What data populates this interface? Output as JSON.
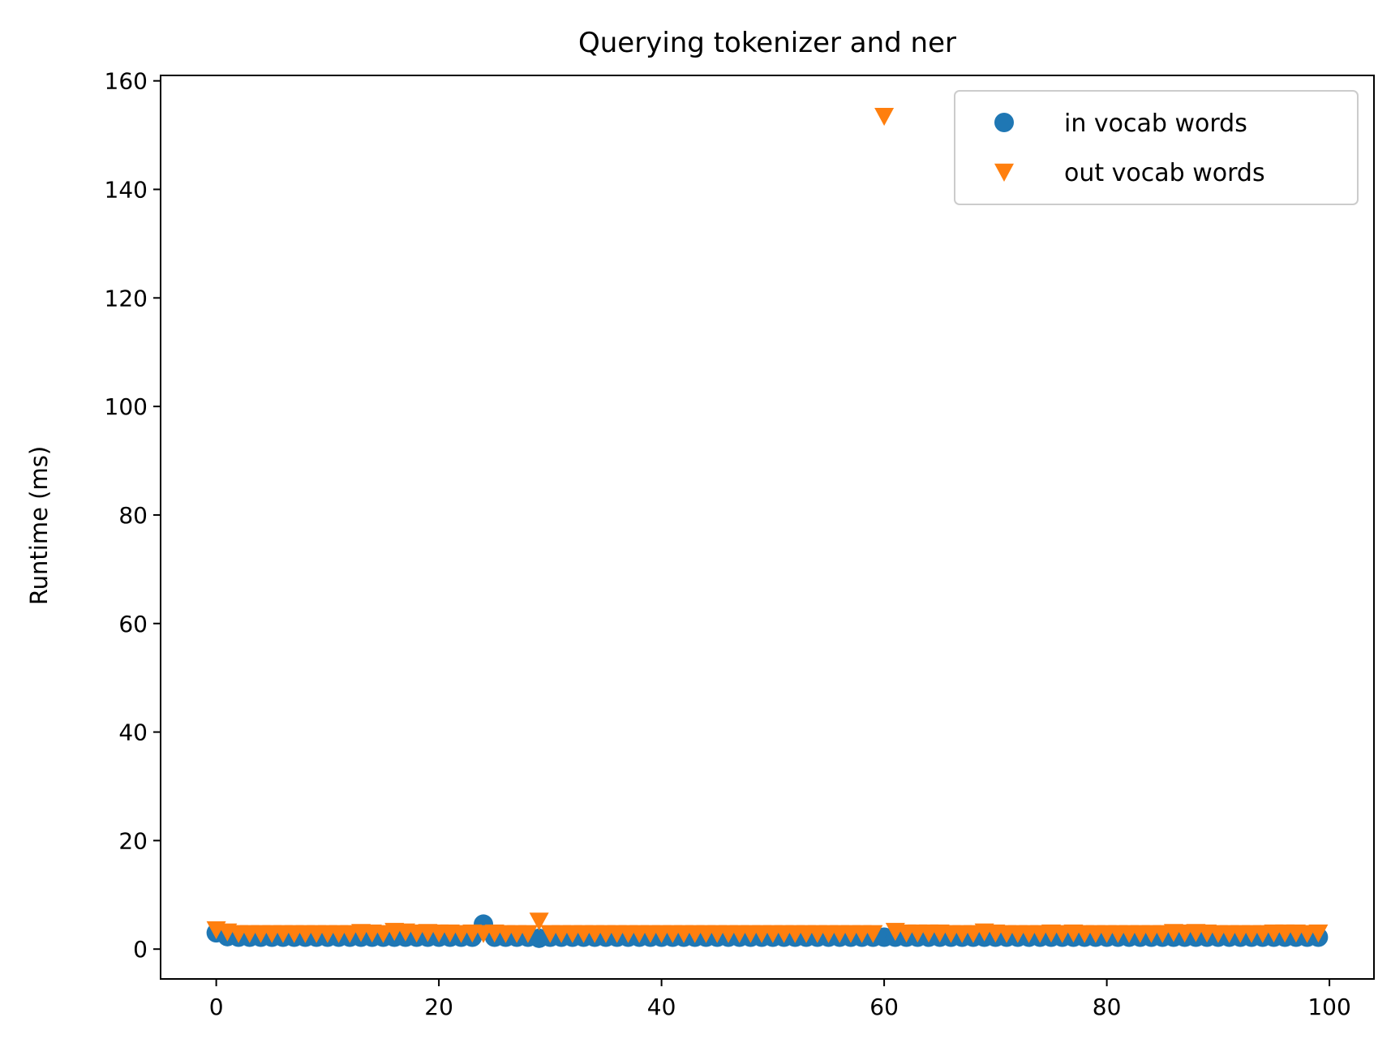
{
  "chart_data": {
    "type": "scatter",
    "title": "Querying tokenizer and ner",
    "xlabel": "",
    "ylabel": "Runtime (ms)",
    "xlim": [
      -5,
      104
    ],
    "ylim": [
      -5.5,
      161
    ],
    "xticks": [
      0,
      20,
      40,
      60,
      80,
      100
    ],
    "yticks": [
      0,
      20,
      40,
      60,
      80,
      100,
      120,
      140,
      160
    ],
    "grid": false,
    "legend_position": "top-right",
    "series": [
      {
        "name": "in vocab words",
        "marker": "circle",
        "color": "#1f77b4",
        "x": [
          0,
          1,
          2,
          3,
          4,
          5,
          6,
          7,
          8,
          9,
          10,
          11,
          12,
          13,
          14,
          15,
          16,
          17,
          18,
          19,
          20,
          21,
          22,
          23,
          24,
          25,
          26,
          27,
          28,
          29,
          30,
          31,
          32,
          33,
          34,
          35,
          36,
          37,
          38,
          39,
          40,
          41,
          42,
          43,
          44,
          45,
          46,
          47,
          48,
          49,
          50,
          51,
          52,
          53,
          54,
          55,
          56,
          57,
          58,
          59,
          60,
          61,
          62,
          63,
          64,
          65,
          66,
          67,
          68,
          69,
          70,
          71,
          72,
          73,
          74,
          75,
          76,
          77,
          78,
          79,
          80,
          81,
          82,
          83,
          84,
          85,
          86,
          87,
          88,
          89,
          90,
          91,
          92,
          93,
          94,
          95,
          96,
          97,
          98,
          99
        ],
        "y": [
          3.0,
          2.3,
          2.2,
          2.2,
          2.2,
          2.2,
          2.2,
          2.2,
          2.2,
          2.2,
          2.2,
          2.2,
          2.2,
          2.2,
          2.2,
          2.2,
          2.2,
          2.2,
          2.2,
          2.2,
          2.2,
          2.2,
          2.2,
          2.2,
          4.6,
          2.2,
          2.2,
          2.2,
          2.2,
          2.0,
          2.2,
          2.2,
          2.2,
          2.2,
          2.2,
          2.2,
          2.2,
          2.2,
          2.2,
          2.2,
          2.2,
          2.2,
          2.2,
          2.2,
          2.2,
          2.2,
          2.2,
          2.2,
          2.2,
          2.2,
          2.2,
          2.2,
          2.2,
          2.2,
          2.2,
          2.2,
          2.2,
          2.2,
          2.2,
          2.2,
          2.2,
          2.2,
          2.2,
          2.2,
          2.2,
          2.2,
          2.2,
          2.2,
          2.2,
          2.2,
          2.2,
          2.2,
          2.2,
          2.2,
          2.2,
          2.2,
          2.2,
          2.2,
          2.2,
          2.2,
          2.2,
          2.2,
          2.2,
          2.2,
          2.2,
          2.2,
          2.2,
          2.2,
          2.2,
          2.2,
          2.2,
          2.2,
          2.2,
          2.2,
          2.2,
          2.2,
          2.2,
          2.2,
          2.2,
          2.2
        ]
      },
      {
        "name": "out vocab words",
        "marker": "triangle-down",
        "color": "#ff7f0e",
        "x": [
          0,
          1,
          2,
          3,
          4,
          5,
          6,
          7,
          8,
          9,
          10,
          11,
          12,
          13,
          14,
          15,
          16,
          17,
          18,
          19,
          20,
          21,
          22,
          23,
          24,
          25,
          26,
          27,
          28,
          29,
          30,
          31,
          32,
          33,
          34,
          35,
          36,
          37,
          38,
          39,
          40,
          41,
          42,
          43,
          44,
          45,
          46,
          47,
          48,
          49,
          50,
          51,
          52,
          53,
          54,
          55,
          56,
          57,
          58,
          59,
          60,
          61,
          62,
          63,
          64,
          65,
          66,
          67,
          68,
          69,
          70,
          71,
          72,
          73,
          74,
          75,
          76,
          77,
          78,
          79,
          80,
          81,
          82,
          83,
          84,
          85,
          86,
          87,
          88,
          89,
          90,
          91,
          92,
          93,
          94,
          95,
          96,
          97,
          98,
          99
        ],
        "y": [
          3.6,
          3.2,
          2.9,
          2.9,
          2.9,
          2.9,
          2.9,
          2.9,
          2.9,
          2.9,
          2.9,
          2.9,
          2.9,
          3.1,
          3.0,
          2.9,
          3.3,
          3.2,
          3.0,
          3.1,
          3.0,
          3.0,
          2.9,
          3.0,
          2.9,
          3.0,
          2.9,
          2.9,
          2.9,
          5.2,
          2.9,
          2.9,
          2.9,
          2.9,
          2.9,
          2.9,
          2.9,
          2.9,
          2.9,
          2.9,
          2.9,
          2.9,
          2.9,
          2.9,
          2.9,
          2.9,
          2.9,
          2.9,
          2.9,
          2.9,
          2.9,
          2.9,
          2.9,
          2.9,
          2.9,
          2.9,
          2.9,
          2.9,
          2.9,
          2.9,
          153.5,
          3.3,
          3.0,
          3.0,
          3.0,
          3.0,
          2.9,
          2.9,
          2.9,
          3.2,
          3.0,
          2.9,
          2.9,
          2.9,
          2.9,
          3.0,
          2.9,
          3.0,
          2.9,
          2.9,
          2.9,
          2.9,
          2.9,
          2.9,
          2.9,
          2.9,
          3.1,
          3.0,
          3.1,
          3.0,
          2.9,
          2.9,
          2.9,
          2.9,
          2.9,
          3.0,
          3.0,
          3.0,
          2.9,
          3.0
        ]
      }
    ]
  }
}
